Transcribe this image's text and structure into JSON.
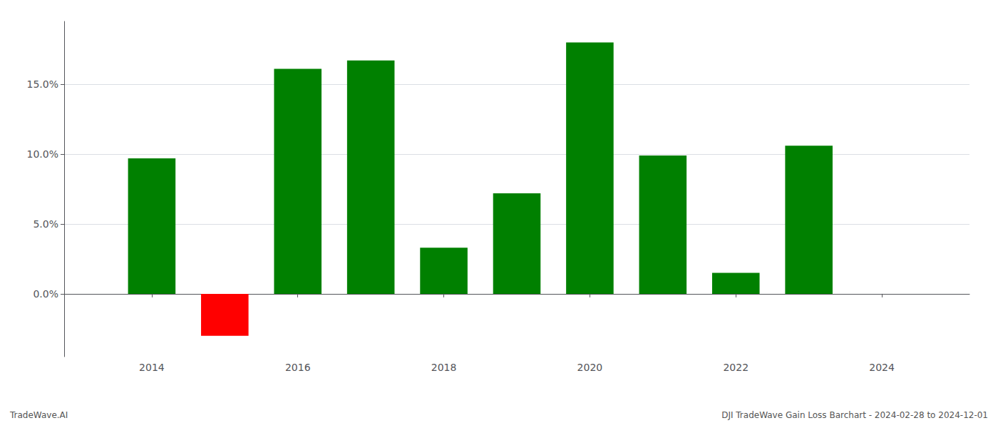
{
  "chart_data": {
    "type": "bar",
    "x": [
      2014,
      2015,
      2016,
      2017,
      2018,
      2019,
      2020,
      2021,
      2022,
      2023
    ],
    "values": [
      9.7,
      -3.0,
      16.1,
      16.7,
      3.3,
      7.2,
      18.0,
      9.9,
      1.5,
      10.6
    ],
    "colors": [
      "#008000",
      "#ff0000",
      "#008000",
      "#008000",
      "#008000",
      "#008000",
      "#008000",
      "#008000",
      "#008000",
      "#008000"
    ],
    "xlim": [
      2012.8,
      2025.2
    ],
    "xticks": [
      2014,
      2016,
      2018,
      2020,
      2022,
      2024
    ],
    "ylim": [
      -4.5,
      19.5
    ],
    "yticks": [
      {
        "value": 0.0,
        "label": "0.0%"
      },
      {
        "value": 5.0,
        "label": "5.0%"
      },
      {
        "value": 10.0,
        "label": "10.0%"
      },
      {
        "value": 15.0,
        "label": "15.0%"
      }
    ],
    "grid": true,
    "annotations": [
      "TradeWave.AI",
      "DJI TradeWave Gain Loss Barchart - 2024-02-28 to 2024-12-01"
    ]
  }
}
